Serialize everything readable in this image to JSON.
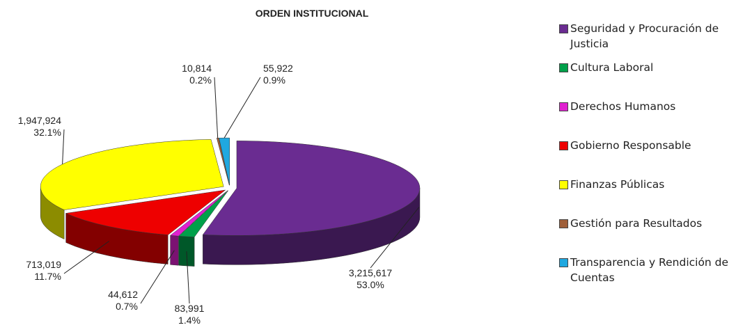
{
  "chart_data": {
    "type": "pie",
    "title": "ORDEN INSTITUCIONAL",
    "categories": [
      "Seguridad y Procuración de Justicia",
      "Cultura Laboral",
      "Derechos Humanos",
      "Gobierno Responsable",
      "Finanzas Públicas",
      "Gestión para Resultados",
      "Transparencia y Rendición de Cuentas"
    ],
    "values": [
      3215617,
      83991,
      44612,
      713019,
      1947924,
      10814,
      55922
    ],
    "value_labels": [
      "3,215,617",
      "83,991",
      "44,612",
      "713,019",
      "1,947,924",
      "10,814",
      "55,922"
    ],
    "percents": [
      53.0,
      1.4,
      0.7,
      11.7,
      32.1,
      0.2,
      0.9
    ],
    "percent_labels": [
      "53.0%",
      "1.4%",
      "0.7%",
      "11.7%",
      "32.1%",
      "0.2%",
      "0.9%"
    ],
    "colors": [
      "#6a2c91",
      "#00a04a",
      "#e020d0",
      "#ee0000",
      "#ffff00",
      "#a0603a",
      "#20a8e0"
    ],
    "legend": "right"
  }
}
